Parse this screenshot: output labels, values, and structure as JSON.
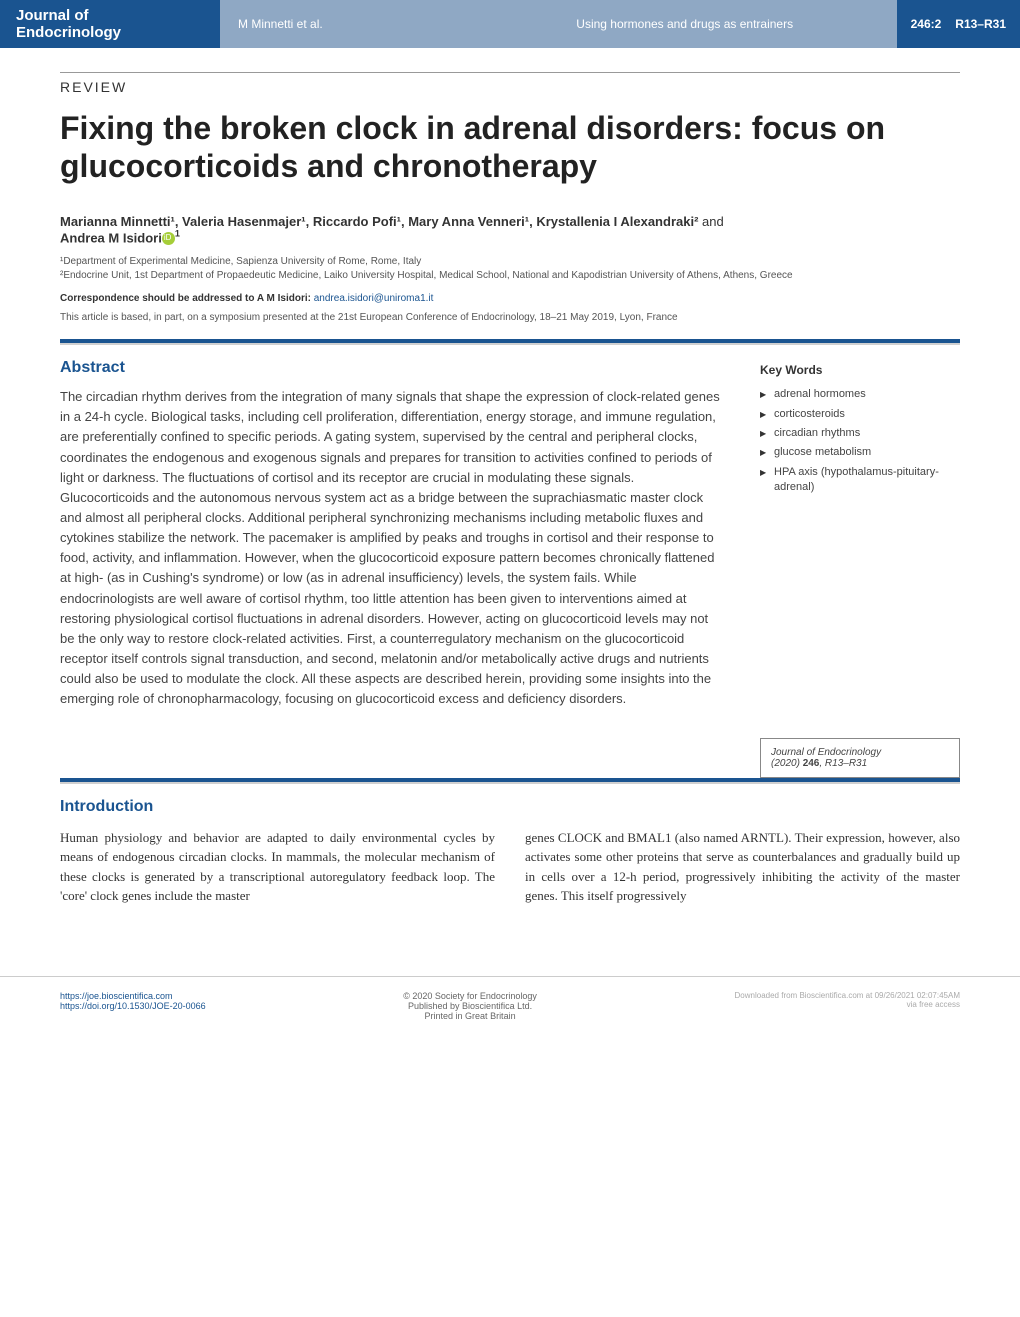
{
  "header": {
    "journal_line1": "Journal of",
    "journal_line2": "Endocrinology",
    "authors_short": "M Minnetti et al.",
    "running_title": "Using hormones and drugs as entrainers",
    "issue": "246:2",
    "pages": "R13–R31"
  },
  "article": {
    "type_label": "REVIEW",
    "title": "Fixing the broken clock in adrenal disorders: focus on glucocorticoids and chronotherapy",
    "authors_html": "Marianna Minnetti¹, Valeria Hasenmajer¹, Riccardo Pofi¹, Mary Anna Venneri¹, Krystallenia I Alexandraki²",
    "author_and": "and",
    "author_last": "Andrea M Isidori",
    "author_last_sup": "1",
    "affiliation1": "¹Department of Experimental Medicine, Sapienza University of Rome, Rome, Italy",
    "affiliation2": "²Endocrine Unit, 1st Department of Propaedeutic Medicine, Laiko University Hospital, Medical School, National and Kapodistrian University of Athens, Athens, Greece",
    "correspondence_label": "Correspondence should be addressed to A M Isidori:",
    "correspondence_email": "andrea.isidori@uniroma1.it",
    "symposium_note": "This article is based, in part, on a symposium presented at the 21st European Conference of Endocrinology, 18–21 May 2019, Lyon, France"
  },
  "abstract": {
    "heading": "Abstract",
    "text": "The circadian rhythm derives from the integration of many signals that shape the expression of clock-related genes in a 24-h cycle. Biological tasks, including cell proliferation, differentiation, energy storage, and immune regulation, are preferentially confined to specific periods. A gating system, supervised by the central and peripheral clocks, coordinates the endogenous and exogenous signals and prepares for transition to activities confined to periods of light or darkness. The fluctuations of cortisol and its receptor are crucial in modulating these signals. Glucocorticoids and the autonomous nervous system act as a bridge between the suprachiasmatic master clock and almost all peripheral clocks. Additional peripheral synchronizing mechanisms including metabolic fluxes and cytokines stabilize the network. The pacemaker is amplified by peaks and troughs in cortisol and their response to food, activity, and inflammation. However, when the glucocorticoid exposure pattern becomes chronically flattened at high- (as in Cushing's syndrome) or low (as in adrenal insufficiency) levels, the system fails. While endocrinologists are well aware of cortisol rhythm, too little attention has been given to interventions aimed at restoring physiological cortisol fluctuations in adrenal disorders. However, acting on glucocorticoid levels may not be the only way to restore clock-related activities. First, a counterregulatory mechanism on the glucocorticoid receptor itself controls signal transduction, and second, melatonin and/or metabolically active drugs and nutrients could also be used to modulate the clock. All these aspects are described herein, providing some insights into the emerging role of chronopharmacology, focusing on glucocorticoid excess and deficiency disorders."
  },
  "keywords": {
    "heading": "Key Words",
    "items": [
      "adrenal hormomes",
      "corticosteroids",
      "circadian rhythms",
      "glucose metabolism",
      "HPA axis (hypothalamus-pituitary-adrenal)"
    ]
  },
  "citation": {
    "journal": "Journal of Endocrinology",
    "year": "(2020)",
    "volume": "246",
    "pages": ", R13–R31"
  },
  "introduction": {
    "heading": "Introduction",
    "col1": "Human physiology and behavior are adapted to daily environmental cycles by means of endogenous circadian clocks. In mammals, the molecular mechanism of these clocks is generated by a transcriptional autoregulatory feedback loop. The 'core' clock genes include the master",
    "col2": "genes CLOCK and BMAL1 (also named ARNTL). Their expression, however, also activates some other proteins that serve as counterbalances and gradually build up in cells over a 12-h period, progressively inhibiting the activity of the master genes. This itself progressively"
  },
  "footer": {
    "url1": "https://joe.bioscientifica.com",
    "url2": "https://doi.org/10.1530/JOE-20-0066",
    "copyright": "© 2020 Society for Endocrinology",
    "publisher": "Published by Bioscientifica Ltd.",
    "printed": "Printed in Great Britain",
    "download": "Downloaded from Bioscientifica.com at 09/26/2021 02:07:45AM",
    "access": "via free access"
  },
  "colors": {
    "primary_blue": "#1a5490",
    "header_light_blue": "#8fa8c4",
    "orcid_green": "#a6ce39",
    "text_dark": "#333333",
    "text_mid": "#555555"
  }
}
